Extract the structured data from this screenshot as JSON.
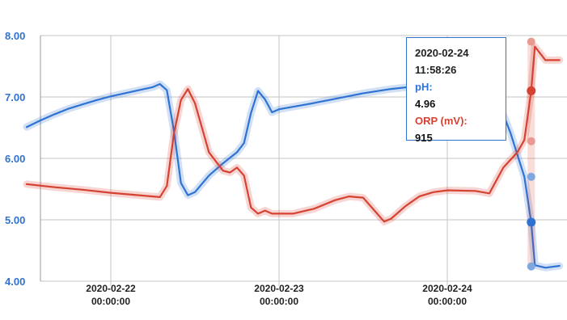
{
  "chart_data": {
    "type": "line",
    "y_ticks": [
      "8.00",
      "7.00",
      "6.00",
      "5.00",
      "4.00"
    ],
    "ylim": [
      4.0,
      8.0
    ],
    "x_ticks": [
      {
        "date": "2020-02-22",
        "time": "00:00:00"
      },
      {
        "date": "2020-02-23",
        "time": "00:00:00"
      },
      {
        "date": "2020-02-24",
        "time": "00:00:00"
      }
    ],
    "grid": true,
    "series": [
      {
        "name": "pH",
        "color": "#2e72d2",
        "points": [
          [
            "2020-02-21 12:00",
            6.51
          ],
          [
            "2020-02-21 14:00",
            6.62
          ],
          [
            "2020-02-21 16:00",
            6.72
          ],
          [
            "2020-02-21 18:00",
            6.81
          ],
          [
            "2020-02-21 20:00",
            6.88
          ],
          [
            "2020-02-21 22:00",
            6.95
          ],
          [
            "2020-02-22 00:00",
            7.01
          ],
          [
            "2020-02-22 02:00",
            7.06
          ],
          [
            "2020-02-22 04:00",
            7.11
          ],
          [
            "2020-02-22 06:00",
            7.16
          ],
          [
            "2020-02-22 07:00",
            7.21
          ],
          [
            "2020-02-22 08:00",
            7.11
          ],
          [
            "2020-02-22 09:00",
            6.45
          ],
          [
            "2020-02-22 10:00",
            5.6
          ],
          [
            "2020-02-22 11:00",
            5.4
          ],
          [
            "2020-02-22 12:00",
            5.45
          ],
          [
            "2020-02-22 14:00",
            5.72
          ],
          [
            "2020-02-22 16:00",
            5.92
          ],
          [
            "2020-02-22 18:00",
            6.1
          ],
          [
            "2020-02-22 19:00",
            6.25
          ],
          [
            "2020-02-22 20:00",
            6.74
          ],
          [
            "2020-02-22 21:00",
            7.1
          ],
          [
            "2020-02-22 22:00",
            6.96
          ],
          [
            "2020-02-22 23:00",
            6.75
          ],
          [
            "2020-02-23 00:00",
            6.8
          ],
          [
            "2020-02-23 04:00",
            6.88
          ],
          [
            "2020-02-23 08:00",
            6.97
          ],
          [
            "2020-02-23 12:00",
            7.06
          ],
          [
            "2020-02-23 16:00",
            7.13
          ],
          [
            "2020-02-23 20:00",
            7.18
          ],
          [
            "2020-02-24 00:00",
            7.27
          ],
          [
            "2020-02-24 04:00",
            7.33
          ],
          [
            "2020-02-24 05:00",
            7.35
          ],
          [
            "2020-02-24 07:00",
            7.01
          ],
          [
            "2020-02-24 09:00",
            6.42
          ],
          [
            "2020-02-24 11:00",
            5.7
          ],
          [
            "2020-02-24 11:58",
            4.96
          ],
          [
            "2020-02-24 12:30",
            4.26
          ],
          [
            "2020-02-24 14:00",
            4.22
          ],
          [
            "2020-02-24 16:00",
            4.25
          ]
        ]
      },
      {
        "name": "ORP (mV)",
        "color": "#d64232",
        "points": [
          [
            "2020-02-21 12:00",
            5.58
          ],
          [
            "2020-02-21 16:00",
            5.53
          ],
          [
            "2020-02-21 20:00",
            5.49
          ],
          [
            "2020-02-22 00:00",
            5.44
          ],
          [
            "2020-02-22 04:00",
            5.4
          ],
          [
            "2020-02-22 07:00",
            5.37
          ],
          [
            "2020-02-22 08:00",
            5.55
          ],
          [
            "2020-02-22 09:00",
            6.4
          ],
          [
            "2020-02-22 10:00",
            6.95
          ],
          [
            "2020-02-22 11:00",
            7.13
          ],
          [
            "2020-02-22 12:00",
            6.9
          ],
          [
            "2020-02-22 13:00",
            6.5
          ],
          [
            "2020-02-22 14:00",
            6.1
          ],
          [
            "2020-02-22 16:00",
            5.8
          ],
          [
            "2020-02-22 17:00",
            5.77
          ],
          [
            "2020-02-22 18:00",
            5.85
          ],
          [
            "2020-02-22 19:00",
            5.72
          ],
          [
            "2020-02-22 20:00",
            5.2
          ],
          [
            "2020-02-22 21:00",
            5.1
          ],
          [
            "2020-02-22 22:00",
            5.15
          ],
          [
            "2020-02-22 23:00",
            5.1
          ],
          [
            "2020-02-23 02:00",
            5.1
          ],
          [
            "2020-02-23 05:00",
            5.18
          ],
          [
            "2020-02-23 08:00",
            5.32
          ],
          [
            "2020-02-23 10:00",
            5.38
          ],
          [
            "2020-02-23 12:00",
            5.36
          ],
          [
            "2020-02-23 14:00",
            5.1
          ],
          [
            "2020-02-23 15:00",
            4.97
          ],
          [
            "2020-02-23 16:00",
            5.02
          ],
          [
            "2020-02-23 18:00",
            5.22
          ],
          [
            "2020-02-23 20:00",
            5.38
          ],
          [
            "2020-02-23 22:00",
            5.45
          ],
          [
            "2020-02-24 00:00",
            5.48
          ],
          [
            "2020-02-24 04:00",
            5.47
          ],
          [
            "2020-02-24 06:00",
            5.43
          ],
          [
            "2020-02-24 08:00",
            5.85
          ],
          [
            "2020-02-24 10:00",
            6.1
          ],
          [
            "2020-02-24 11:00",
            6.3
          ],
          [
            "2020-02-24 11:58",
            7.1
          ],
          [
            "2020-02-24 12:30",
            7.82
          ],
          [
            "2020-02-24 14:00",
            7.6
          ],
          [
            "2020-02-24 16:00",
            7.6
          ]
        ]
      }
    ],
    "tooltip": {
      "timestamp": "2020-02-24 11:58:26",
      "ph_label": "pH:",
      "ph_value": "4.96",
      "orp_label": "ORP (mV):",
      "orp_value": "915"
    }
  }
}
